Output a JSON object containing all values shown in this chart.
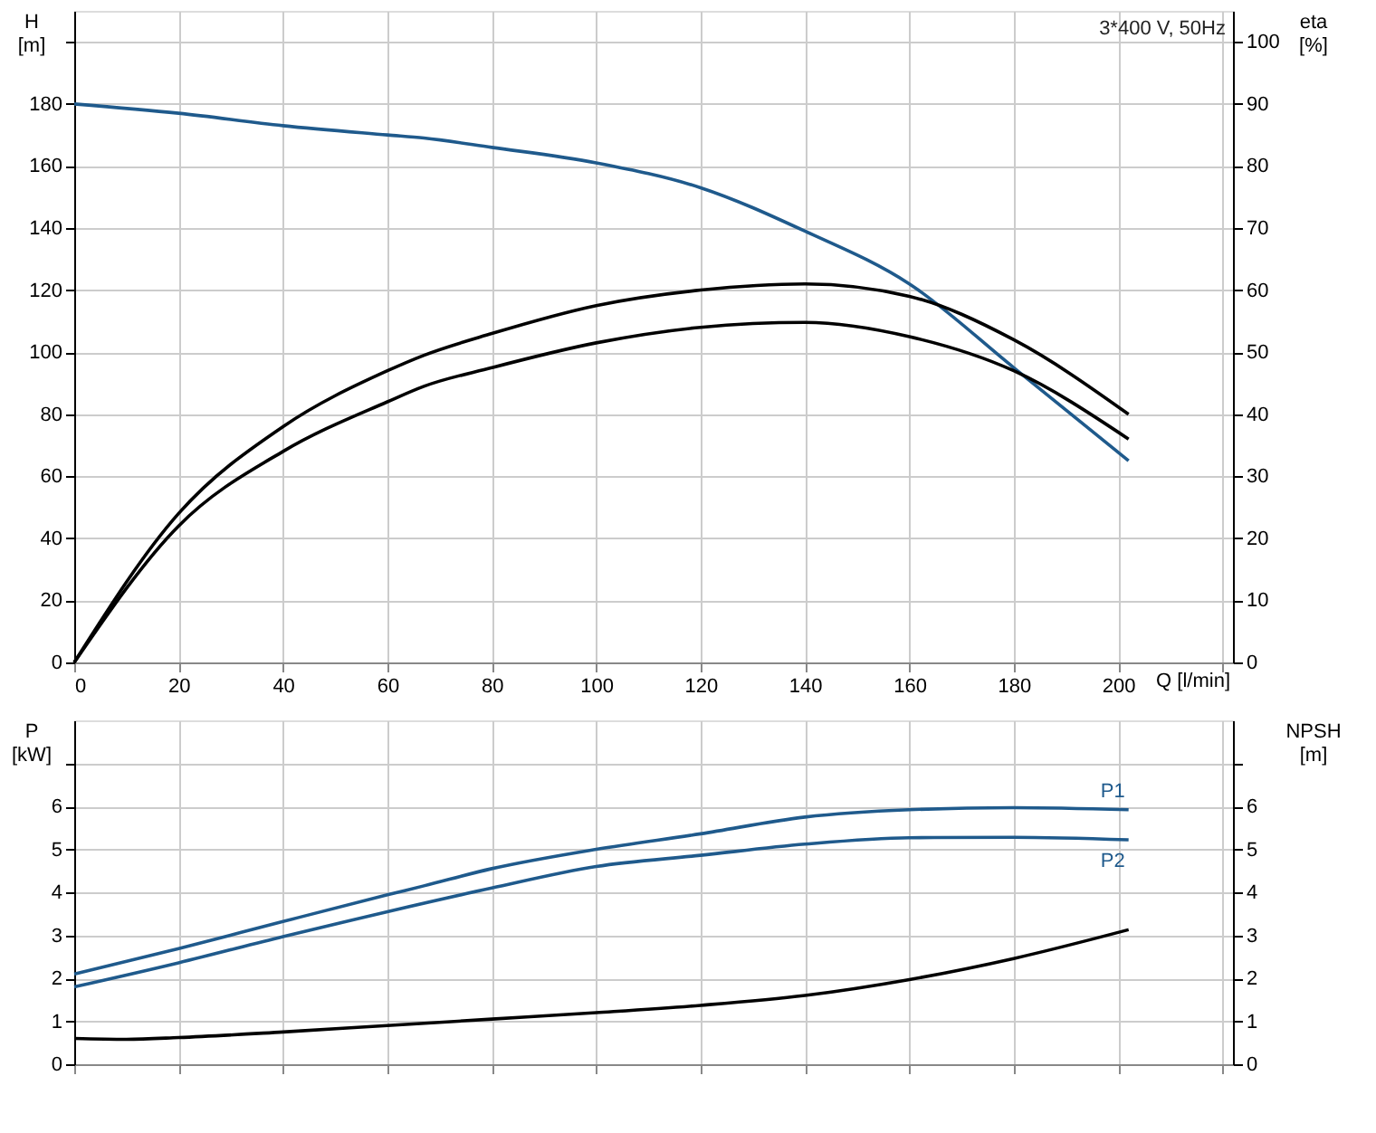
{
  "chart_data": [
    {
      "type": "line",
      "xlabel": "Q [l/min]",
      "ylabel": "H\n[m]",
      "y2label": "eta\n[%]",
      "annotations": [
        "3*400 V, 50Hz"
      ],
      "grid": true,
      "xlim": [
        0,
        222
      ],
      "xticks": [
        0,
        20,
        40,
        60,
        80,
        100,
        120,
        140,
        160,
        180,
        200,
        {
          "value": 220,
          "label": null
        }
      ],
      "ylim": [
        0,
        210
      ],
      "yticks": [
        0,
        20,
        40,
        60,
        80,
        100,
        120,
        140,
        160,
        180,
        {
          "value": 200,
          "label": null
        }
      ],
      "y2lim": [
        0,
        105
      ],
      "y2ticks": [
        0,
        10,
        20,
        30,
        40,
        50,
        60,
        70,
        80,
        90,
        100
      ],
      "series": [
        {
          "color": "#1f5a8c",
          "x": [
            0,
            20,
            40,
            60,
            67,
            80,
            100,
            120,
            140,
            160,
            180,
            202
          ],
          "values": [
            180,
            177,
            173,
            170,
            169,
            166,
            161,
            153,
            139,
            122,
            95,
            65
          ]
        },
        {
          "color": "#000000",
          "axis": "y2",
          "x": [
            0,
            20,
            40,
            60,
            67,
            80,
            100,
            120,
            140,
            160,
            180,
            202
          ],
          "values": [
            0,
            24,
            38,
            47,
            49.5,
            53,
            57.5,
            60,
            61,
            59,
            52,
            40
          ]
        },
        {
          "color": "#000000",
          "axis": "y2",
          "x": [
            0,
            20,
            40,
            60,
            67,
            80,
            100,
            120,
            140,
            160,
            180,
            202
          ],
          "values": [
            0,
            22,
            34,
            42,
            44.5,
            47.5,
            51.5,
            54,
            54.8,
            52.5,
            47,
            36
          ]
        }
      ]
    },
    {
      "type": "line",
      "ylabel": "P\n[kW]",
      "y2label": "NPSH\n[m]",
      "grid": true,
      "tick_labels": "y",
      "xlim": [
        0,
        222
      ],
      "xticks": [
        0,
        20,
        40,
        60,
        80,
        100,
        120,
        140,
        160,
        180,
        200,
        {
          "value": 220,
          "label": null
        }
      ],
      "ylim": [
        0,
        8
      ],
      "yticks": [
        0,
        1,
        2,
        3,
        4,
        5,
        6,
        {
          "value": 7,
          "label": null
        }
      ],
      "y2lim": [
        0,
        8
      ],
      "y2ticks": [
        0,
        1,
        2,
        3,
        4,
        5,
        6,
        {
          "value": 7,
          "label": null
        }
      ],
      "series": [
        {
          "name": "P1",
          "color": "#1f5a8c",
          "x": [
            0,
            20,
            40,
            60,
            67,
            80,
            100,
            120,
            140,
            160,
            180,
            202
          ],
          "values": [
            2.1,
            2.69,
            3.32,
            3.94,
            4.15,
            4.55,
            5.0,
            5.36,
            5.75,
            5.92,
            5.97,
            5.92
          ]
        },
        {
          "name": "P2",
          "color": "#1f5a8c",
          "x": [
            0,
            20,
            40,
            60,
            80,
            100,
            120,
            140,
            160,
            180,
            202
          ],
          "values": [
            1.8,
            2.36,
            2.97,
            3.55,
            4.1,
            4.6,
            4.86,
            5.12,
            5.27,
            5.28,
            5.22
          ]
        },
        {
          "color": "#000000",
          "axis": "y2",
          "x": [
            0,
            10,
            20,
            40,
            60,
            80,
            100,
            120,
            140,
            160,
            180,
            202
          ],
          "values": [
            0.6,
            0.58,
            0.62,
            0.75,
            0.9,
            1.05,
            1.2,
            1.37,
            1.6,
            1.97,
            2.46,
            3.13
          ]
        }
      ]
    }
  ]
}
